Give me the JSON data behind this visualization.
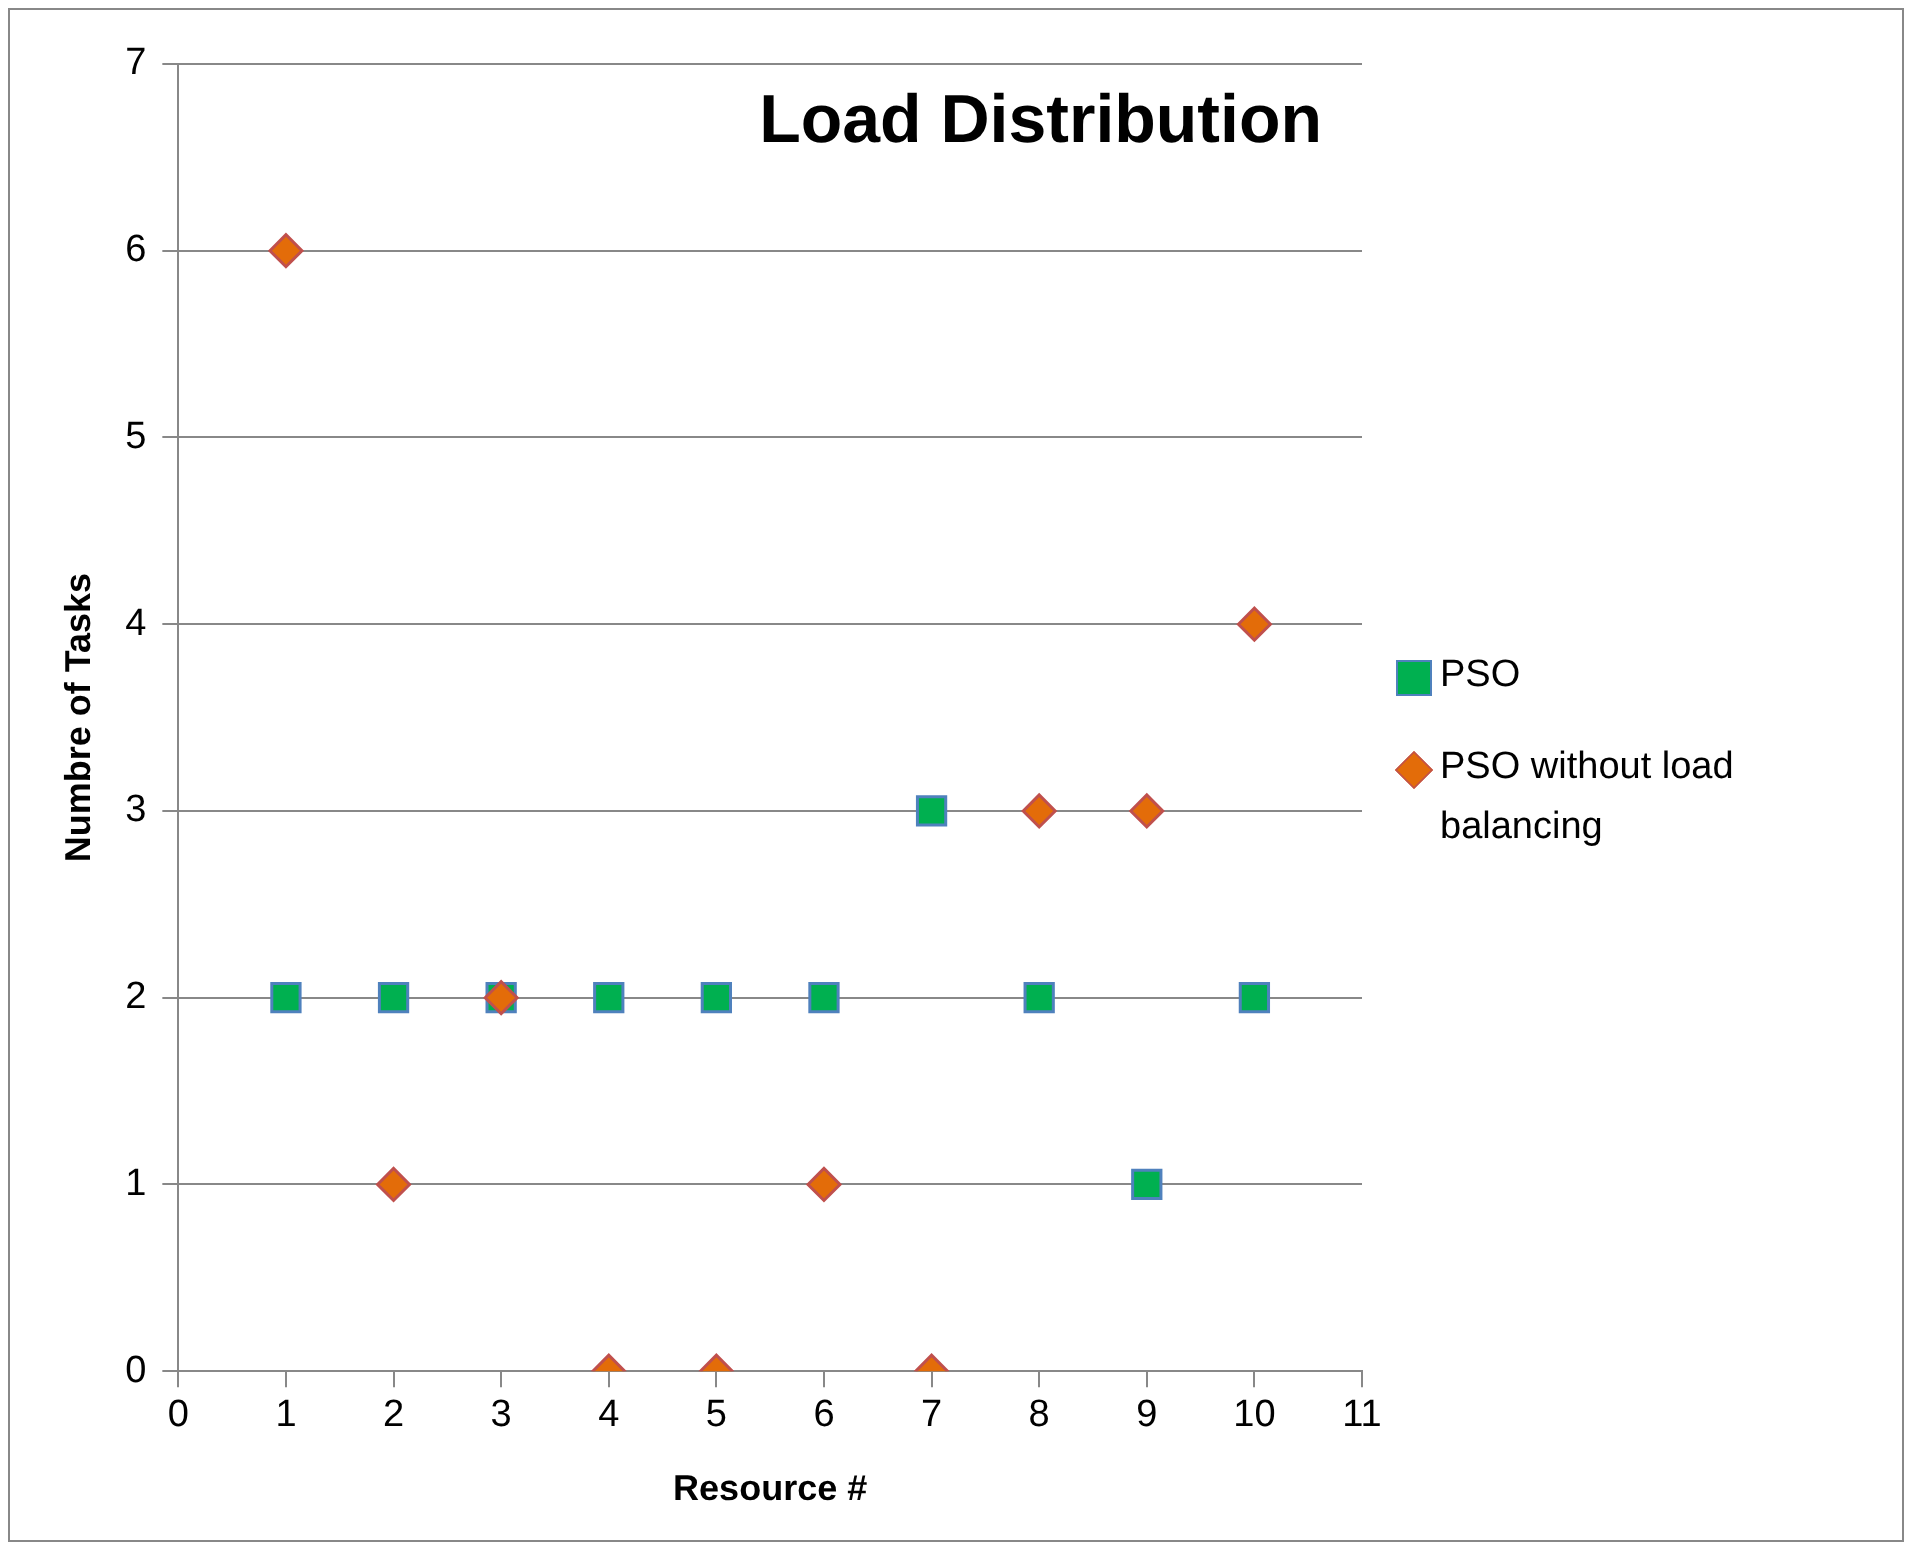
{
  "chart_data": {
    "type": "scatter",
    "title": "Load Distribution",
    "xlabel": "Resource #",
    "ylabel": "Numbre of Tasks",
    "xlim": [
      0,
      11
    ],
    "xticks": [
      0,
      1,
      2,
      3,
      4,
      5,
      6,
      7,
      8,
      9,
      10,
      11
    ],
    "ylim": [
      0,
      7
    ],
    "yticks": [
      0,
      1,
      2,
      3,
      4,
      5,
      6,
      7
    ],
    "grid": "y",
    "legend": "right",
    "x": [
      1,
      2,
      3,
      4,
      5,
      6,
      7,
      8,
      9,
      10
    ],
    "series": [
      {
        "name": "PSO",
        "color": "#00b050",
        "marker": "square",
        "values": [
          2,
          2,
          2,
          2,
          2,
          2,
          3,
          2,
          1,
          2
        ]
      },
      {
        "name": "PSO without load balancing",
        "color": "#e36c09",
        "marker": "diamond",
        "values": [
          6,
          1,
          2,
          0,
          0,
          1,
          0,
          3,
          3,
          4
        ]
      }
    ]
  }
}
